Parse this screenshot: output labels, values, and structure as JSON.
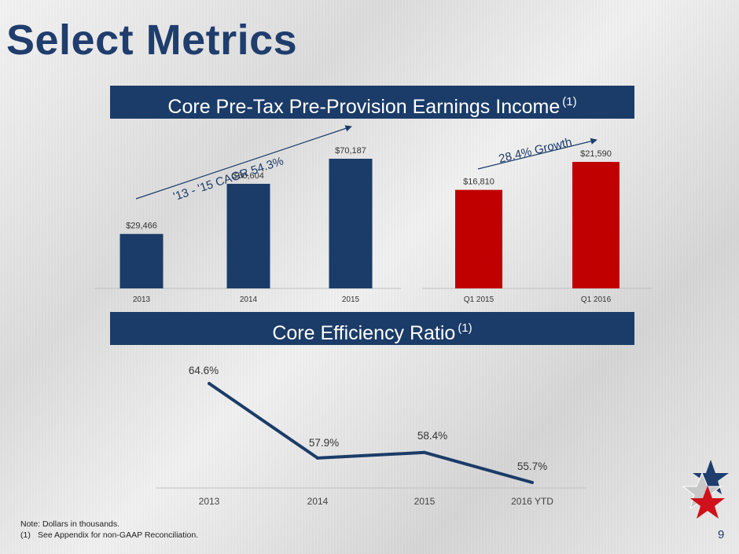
{
  "page": {
    "title": "Select Metrics",
    "page_number": "9",
    "notes": {
      "line1": "Note: Dollars in thousands.",
      "line2_marker": "(1)",
      "line2_text": "See Appendix for non-GAAP Reconciliation."
    },
    "colors": {
      "navy": "#1b3c68",
      "red": "#c00000",
      "title": "#1f3d6d"
    }
  },
  "banners": {
    "top": {
      "text": "Core Pre-Tax Pre-Provision Earnings Income",
      "footnote": "(1)"
    },
    "bottom": {
      "text": "Core Efficiency Ratio",
      "footnote": "(1)"
    }
  },
  "chart_data": [
    {
      "type": "bar",
      "categories": [
        "2013",
        "2014",
        "2015"
      ],
      "values": [
        29466,
        56604,
        70187
      ],
      "data_labels": [
        "$29,466",
        "$56,604",
        "$70,187"
      ],
      "color": "#1b3c68",
      "annotation": "'13 - '15 CAGR 54.3%",
      "ylim": [
        0,
        70187
      ]
    },
    {
      "type": "bar",
      "categories": [
        "Q1 2015",
        "Q1 2016"
      ],
      "values": [
        16810,
        21590
      ],
      "data_labels": [
        "$16,810",
        "$21,590"
      ],
      "color": "#c00000",
      "annotation": "28.4% Growth",
      "ylim": [
        0,
        21590
      ]
    },
    {
      "type": "line",
      "categories": [
        "2013",
        "2014",
        "2015",
        "2016 YTD"
      ],
      "values": [
        64.6,
        57.9,
        58.4,
        55.7
      ],
      "data_labels": [
        "64.6%",
        "57.9%",
        "58.4%",
        "55.7%"
      ],
      "color": "#1b3c68",
      "ylim": [
        55.7,
        64.6
      ]
    }
  ]
}
